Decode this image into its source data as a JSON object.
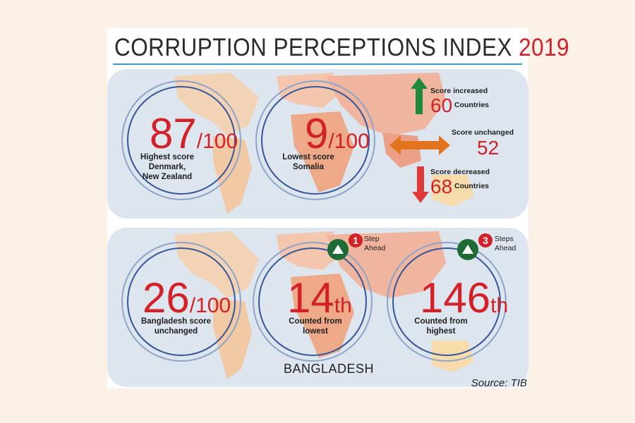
{
  "title": {
    "main": "CORRUPTION PERCEPTIONS INDEX",
    "year": "2019"
  },
  "global": {
    "highest": {
      "score": "87",
      "out_of": "/100",
      "caption": [
        "Highest score",
        "Denmark,",
        "New Zealand"
      ]
    },
    "lowest": {
      "score": "9",
      "out_of": "/100",
      "caption": [
        "Lowest score",
        "Somalia"
      ]
    },
    "increased": {
      "label": "Score increased",
      "count": "60",
      "unit": "Countries"
    },
    "unchanged": {
      "label": "Score unchanged",
      "count": "52"
    },
    "decreased": {
      "label": "Score decreased",
      "count": "68",
      "unit": "Countries"
    }
  },
  "bangladesh": {
    "score": {
      "value": "26",
      "out_of": "/100",
      "caption": [
        "Bangladesh score",
        "unchanged"
      ]
    },
    "from_lowest": {
      "rank": "14",
      "suffix": "th",
      "caption": [
        "Counted from",
        "lowest"
      ],
      "steps": "1",
      "steps_text": [
        "Step",
        "Ahead"
      ]
    },
    "from_highest": {
      "rank": "146",
      "suffix": "th",
      "caption": [
        "Counted from",
        "highest"
      ],
      "steps": "3",
      "steps_text": [
        "Steps",
        "Ahead"
      ]
    },
    "label": "BANGLADESH"
  },
  "source": "Source: TIB",
  "colors": {
    "accent_red": "#d42027",
    "ring_blue": "#35569a",
    "up_green": "#1f8a3a",
    "rule_blue": "#3aa1c1"
  }
}
